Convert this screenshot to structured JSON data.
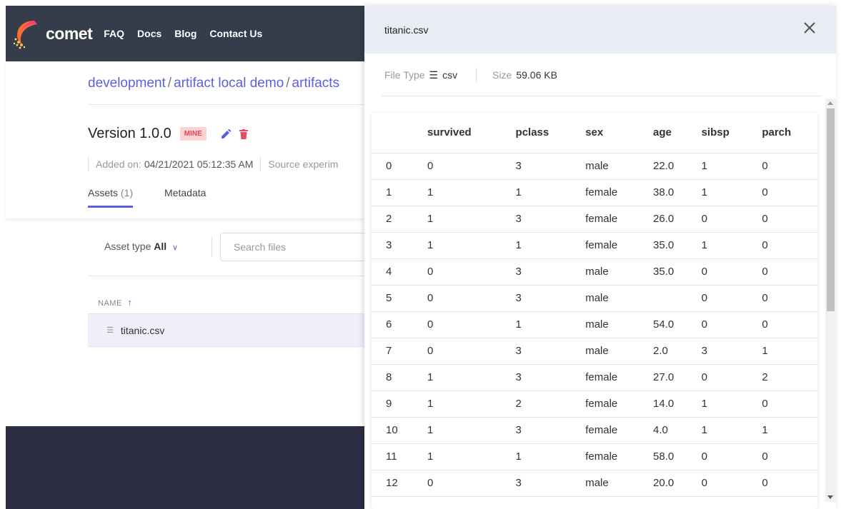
{
  "nav": {
    "logo_text": "comet",
    "links": [
      "FAQ",
      "Docs",
      "Blog",
      "Contact Us"
    ]
  },
  "breadcrumb": [
    "development",
    "artifact local demo",
    "artifacts"
  ],
  "artifact": {
    "version": "Version 1.0.0",
    "badge": "MINE",
    "added_label": "Added on:",
    "added_date": "04/21/2021 05:12:35 AM",
    "source_label": "Source experim"
  },
  "tabs": [
    {
      "label": "Assets",
      "count": "(1)"
    },
    {
      "label": "Metadata",
      "count": ""
    }
  ],
  "filters": {
    "asset_type_label": "Asset type",
    "asset_type_value": "All",
    "search_placeholder": "Search files"
  },
  "files": {
    "column_header": "NAME",
    "items": [
      "titanic.csv"
    ]
  },
  "drawer": {
    "title": "titanic.csv",
    "file_type_label": "File Type",
    "file_type_value": "csv",
    "size_label": "Size",
    "size_value": "59.06 KB"
  },
  "table": {
    "headers": [
      "",
      "survived",
      "pclass",
      "sex",
      "age",
      "sibsp",
      "parch"
    ],
    "rows": [
      [
        "0",
        "0",
        "3",
        "male",
        "22.0",
        "1",
        "0"
      ],
      [
        "1",
        "1",
        "1",
        "female",
        "38.0",
        "1",
        "0"
      ],
      [
        "2",
        "1",
        "3",
        "female",
        "26.0",
        "0",
        "0"
      ],
      [
        "3",
        "1",
        "1",
        "female",
        "35.0",
        "1",
        "0"
      ],
      [
        "4",
        "0",
        "3",
        "male",
        "35.0",
        "0",
        "0"
      ],
      [
        "5",
        "0",
        "3",
        "male",
        "",
        "0",
        "0"
      ],
      [
        "6",
        "0",
        "1",
        "male",
        "54.0",
        "0",
        "0"
      ],
      [
        "7",
        "0",
        "3",
        "male",
        "2.0",
        "3",
        "1"
      ],
      [
        "8",
        "1",
        "3",
        "female",
        "27.0",
        "0",
        "2"
      ],
      [
        "9",
        "1",
        "2",
        "female",
        "14.0",
        "1",
        "0"
      ],
      [
        "10",
        "1",
        "3",
        "female",
        "4.0",
        "1",
        "1"
      ],
      [
        "11",
        "1",
        "1",
        "female",
        "58.0",
        "0",
        "0"
      ],
      [
        "12",
        "0",
        "3",
        "male",
        "20.0",
        "0",
        "0"
      ]
    ]
  },
  "colors": {
    "accent": "#5e5ee0",
    "nav_bg": "#353c4a",
    "badge_bg": "#fbd3d3",
    "badge_fg": "#e0455a",
    "footer_bg": "#2d2e44"
  }
}
